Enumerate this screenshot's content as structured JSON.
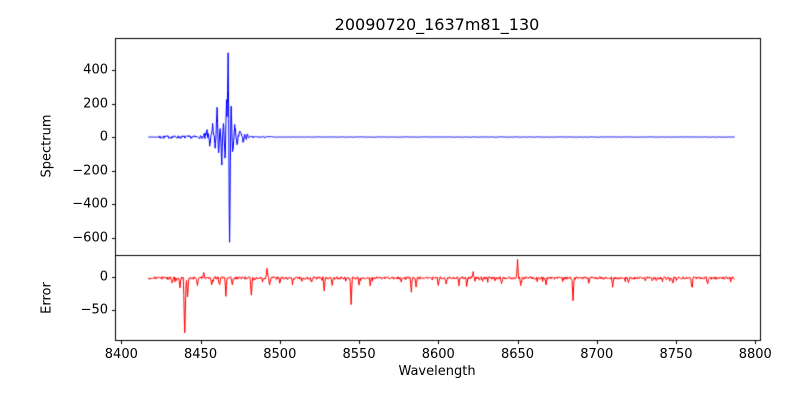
{
  "title": "20090720_1637m81_130",
  "xlabel": "Wavelength",
  "xticks": [
    8400,
    8450,
    8500,
    8550,
    8600,
    8650,
    8700,
    8750,
    8800
  ],
  "xlim": [
    8396,
    8803
  ],
  "chart_data": [
    {
      "type": "line",
      "name": "spectrum",
      "ylabel": "Spectrum",
      "color": "#0000ff",
      "x_start": 8417,
      "x_end": 8787,
      "ylim": [
        -704,
        591
      ],
      "yticks": [
        400,
        200,
        0,
        -200,
        -400,
        -600
      ],
      "baseline": 0,
      "noise_amplitude": 1.5,
      "noise_regions": [
        {
          "x0": 8424,
          "x1": 8452,
          "amplitude": 9
        },
        {
          "x0": 8452,
          "x1": 8479,
          "amplitude": 22
        },
        {
          "x0": 8479,
          "x1": 8495,
          "amplitude": 5
        }
      ],
      "spikes": [
        {
          "x": 8454,
          "y": 35
        },
        {
          "x": 8455.8,
          "y": -40
        },
        {
          "x": 8457.6,
          "y": 60
        },
        {
          "x": 8459.2,
          "y": -55
        },
        {
          "x": 8460.4,
          "y": 175
        },
        {
          "x": 8461.4,
          "y": -80
        },
        {
          "x": 8462.4,
          "y": 65
        },
        {
          "x": 8463.4,
          "y": -150
        },
        {
          "x": 8464.4,
          "y": 95
        },
        {
          "x": 8465.4,
          "y": -120
        },
        {
          "x": 8466.4,
          "y": 210
        },
        {
          "x": 8467.4,
          "y": 500
        },
        {
          "x": 8468.3,
          "y": -640
        },
        {
          "x": 8469.3,
          "y": 170
        },
        {
          "x": 8470.3,
          "y": -95
        },
        {
          "x": 8471.6,
          "y": 60
        },
        {
          "x": 8473.1,
          "y": -45
        },
        {
          "x": 8475,
          "y": 32
        },
        {
          "x": 8477,
          "y": -22
        },
        {
          "x": 8479.5,
          "y": 16
        }
      ]
    },
    {
      "type": "line",
      "name": "error",
      "ylabel": "Error",
      "color": "#ff0000",
      "x_start": 8417,
      "x_end": 8787,
      "ylim": [
        -95.5,
        33.3
      ],
      "yticks": [
        0,
        -50
      ],
      "baseline": -1.5,
      "noise_amplitude": 2,
      "dip_chance": 0.05,
      "dip_depth": 6,
      "spikes": [
        {
          "x": 8432,
          "y": -8
        },
        {
          "x": 8437,
          "y": -14
        },
        {
          "x": 8440,
          "y": -85,
          "w": 0.9
        },
        {
          "x": 8441.8,
          "y": -30
        },
        {
          "x": 8448,
          "y": -12
        },
        {
          "x": 8452,
          "y": 7
        },
        {
          "x": 8457,
          "y": -9
        },
        {
          "x": 8462,
          "y": -10
        },
        {
          "x": 8466,
          "y": -26
        },
        {
          "x": 8470,
          "y": -12
        },
        {
          "x": 8482,
          "y": -28
        },
        {
          "x": 8492,
          "y": 16
        },
        {
          "x": 8493.6,
          "y": -11
        },
        {
          "x": 8500,
          "y": -7
        },
        {
          "x": 8508,
          "y": -9
        },
        {
          "x": 8520,
          "y": -6
        },
        {
          "x": 8528,
          "y": -20
        },
        {
          "x": 8533,
          "y": -12
        },
        {
          "x": 8545,
          "y": -40
        },
        {
          "x": 8550,
          "y": -9
        },
        {
          "x": 8557,
          "y": -10
        },
        {
          "x": 8583,
          "y": -21
        },
        {
          "x": 8586,
          "y": -12
        },
        {
          "x": 8600,
          "y": -12
        },
        {
          "x": 8605,
          "y": -8
        },
        {
          "x": 8613,
          "y": -10
        },
        {
          "x": 8618,
          "y": -12
        },
        {
          "x": 8622,
          "y": 8
        },
        {
          "x": 8628,
          "y": -6
        },
        {
          "x": 8640,
          "y": -8
        },
        {
          "x": 8650,
          "y": 27
        },
        {
          "x": 8652,
          "y": -11
        },
        {
          "x": 8668,
          "y": -10
        },
        {
          "x": 8685,
          "y": -36
        },
        {
          "x": 8695,
          "y": -7
        },
        {
          "x": 8710,
          "y": -13
        },
        {
          "x": 8720,
          "y": -6
        },
        {
          "x": 8735,
          "y": -6
        },
        {
          "x": 8748,
          "y": -8
        },
        {
          "x": 8760,
          "y": -14
        },
        {
          "x": 8770,
          "y": -7
        }
      ]
    }
  ]
}
